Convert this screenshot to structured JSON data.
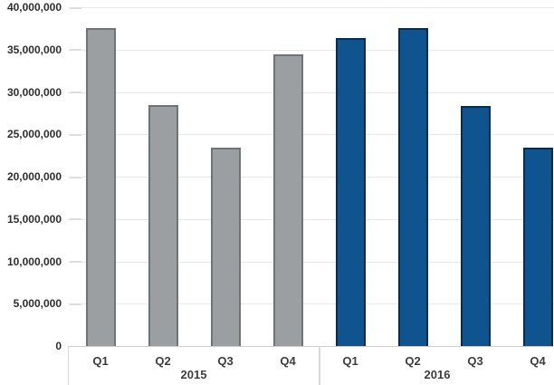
{
  "chart_data": {
    "type": "bar",
    "title": "",
    "xlabel": "",
    "ylabel": "",
    "categories": [
      "Q1",
      "Q2",
      "Q3",
      "Q4"
    ],
    "series": [
      {
        "name": "2015",
        "values": [
          37500000,
          28500000,
          23400000,
          34400000
        ],
        "fill": "#9C9FA2",
        "border": "#717477"
      },
      {
        "name": "2016",
        "values": [
          36400000,
          37500000,
          28300000,
          23400000
        ],
        "fill": "#0F548E",
        "border": "#0A2C4F"
      }
    ],
    "ylim": [
      0,
      40000000
    ],
    "ytick_step": 5000000,
    "ytick_labels": [
      "0",
      "5,000,000",
      "10,000,000",
      "15,000,000",
      "20,000,000",
      "25,000,000",
      "30,000,000",
      "35,000,000",
      "40,000,000"
    ],
    "grid": true,
    "legend": false,
    "layout_note": "two side-by-side quarter groups, gray 2015 left, blue 2016 right, year captions in bordered boxes under axis"
  },
  "axis_colors": {
    "gridline": "#e8e8e8",
    "tick": "#dedede",
    "axis_line": "#cfcfcf",
    "box_border": "#d9d9d9",
    "label_text": "#2e2e2e"
  }
}
